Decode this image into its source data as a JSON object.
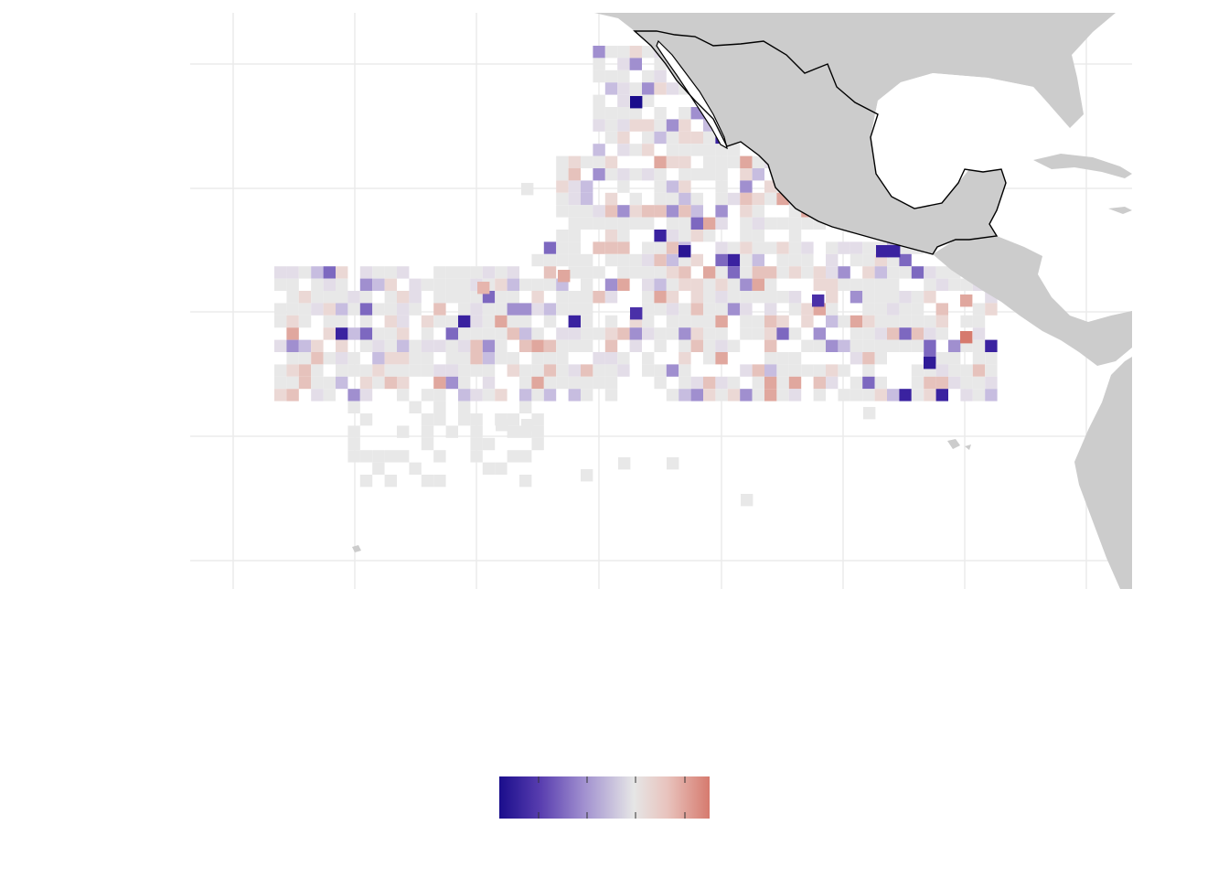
{
  "map": {
    "colors": {
      "panel_background": "#ffffff",
      "gridline": "#ebebeb",
      "land": "#cccccc",
      "land_dark": "#c8c8c8",
      "coastline": "#000000",
      "cell_neutral": "#e8e8e8"
    },
    "color_scale": {
      "low": "#1a0d8c",
      "mid_low": "#8a73c7",
      "mid": "#e8e8e8",
      "high": "#d67a6e",
      "stops": [
        "#1a0d8c",
        "#5a3fb0",
        "#a08fcf",
        "#e5e3ea",
        "#ebdcd9",
        "#e2aaa2",
        "#d67a6e"
      ]
    },
    "cell_legend_values": {
      "note_levels": [
        0,
        0.15,
        0.3,
        0.5,
        0.65,
        0.85,
        1
      ]
    }
  }
}
